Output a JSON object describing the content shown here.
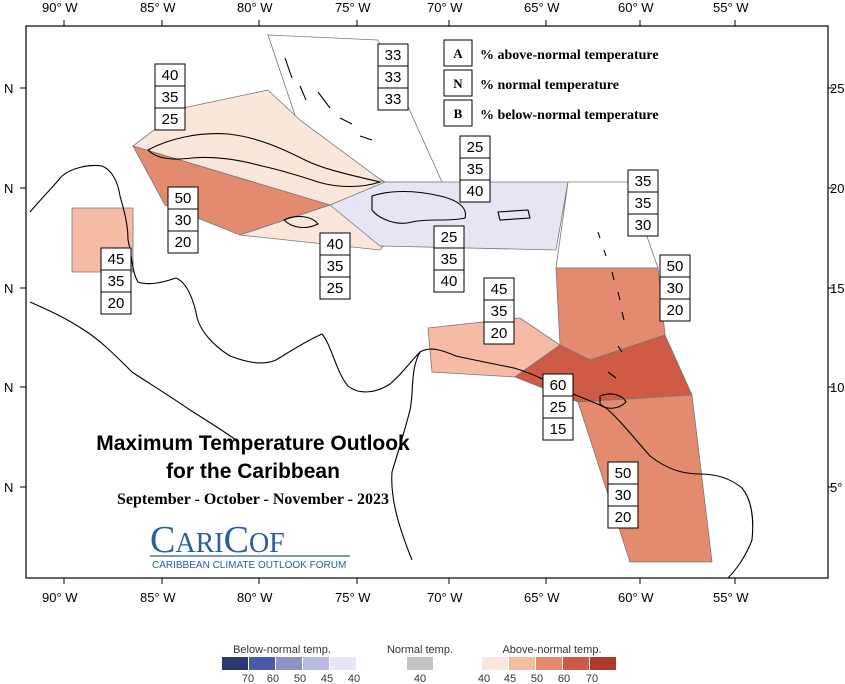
{
  "axes": {
    "longitudes": [
      "90° W",
      "85° W",
      "80° W",
      "75° W",
      "70° W",
      "65° W",
      "60° W",
      "55° W"
    ],
    "latitudes_left": [
      "N",
      "N",
      "N",
      "N",
      "N"
    ],
    "latitudes_right": [
      "25",
      "20",
      "15",
      "10",
      "5°"
    ]
  },
  "map_legend": {
    "above": {
      "key": "A",
      "text": "% above-normal temperature"
    },
    "normal": {
      "key": "N",
      "text": "% normal temperature"
    },
    "below": {
      "key": "B",
      "text": "% below-normal temperature"
    }
  },
  "title": {
    "line1": "Maximum Temperature Outlook",
    "line2": "for the Caribbean",
    "period": "September - October - November - 2023"
  },
  "logo": {
    "name_c1": "C",
    "name_ari": "ARI",
    "name_c2": "C",
    "name_of": "OF",
    "tagline": "CARIBBEAN CLIMATE OUTLOOK FORUM"
  },
  "forecast_boxes": [
    {
      "id": "bahamas",
      "above": "33",
      "normal": "33",
      "below": "33"
    },
    {
      "id": "cuba-north",
      "above": "40",
      "normal": "35",
      "below": "25"
    },
    {
      "id": "cuba-south",
      "above": "50",
      "normal": "30",
      "below": "20"
    },
    {
      "id": "belize",
      "above": "45",
      "normal": "35",
      "below": "20"
    },
    {
      "id": "jamaica",
      "above": "40",
      "normal": "35",
      "below": "25"
    },
    {
      "id": "hispaniola-north",
      "above": "25",
      "normal": "35",
      "below": "40"
    },
    {
      "id": "hispaniola-south",
      "above": "25",
      "normal": "35",
      "below": "40"
    },
    {
      "id": "leeward",
      "above": "35",
      "normal": "35",
      "below": "30"
    },
    {
      "id": "windward",
      "above": "50",
      "normal": "30",
      "below": "20"
    },
    {
      "id": "abc-islands",
      "above": "45",
      "normal": "35",
      "below": "20"
    },
    {
      "id": "trinidad",
      "above": "60",
      "normal": "25",
      "below": "15"
    },
    {
      "id": "guianas",
      "above": "50",
      "normal": "30",
      "below": "20"
    }
  ],
  "colorbar": {
    "below_heading": "Below-normal temp.",
    "normal_heading": "Normal temp.",
    "above_heading": "Above-normal temp.",
    "below_ticks": [
      "70",
      "60",
      "50",
      "45",
      "40"
    ],
    "normal_ticks": [
      "40"
    ],
    "above_ticks": [
      "40",
      "45",
      "50",
      "60",
      "70"
    ],
    "below_colors": [
      "#2c3670",
      "#4a5aa8",
      "#8a93c8",
      "#b8bde0",
      "#e4e6f4"
    ],
    "normal_color": "#c4c4c4",
    "above_colors": [
      "#fbe6dc",
      "#f5bba5",
      "#e48a6e",
      "#cf5a45",
      "#b03a2a"
    ]
  }
}
